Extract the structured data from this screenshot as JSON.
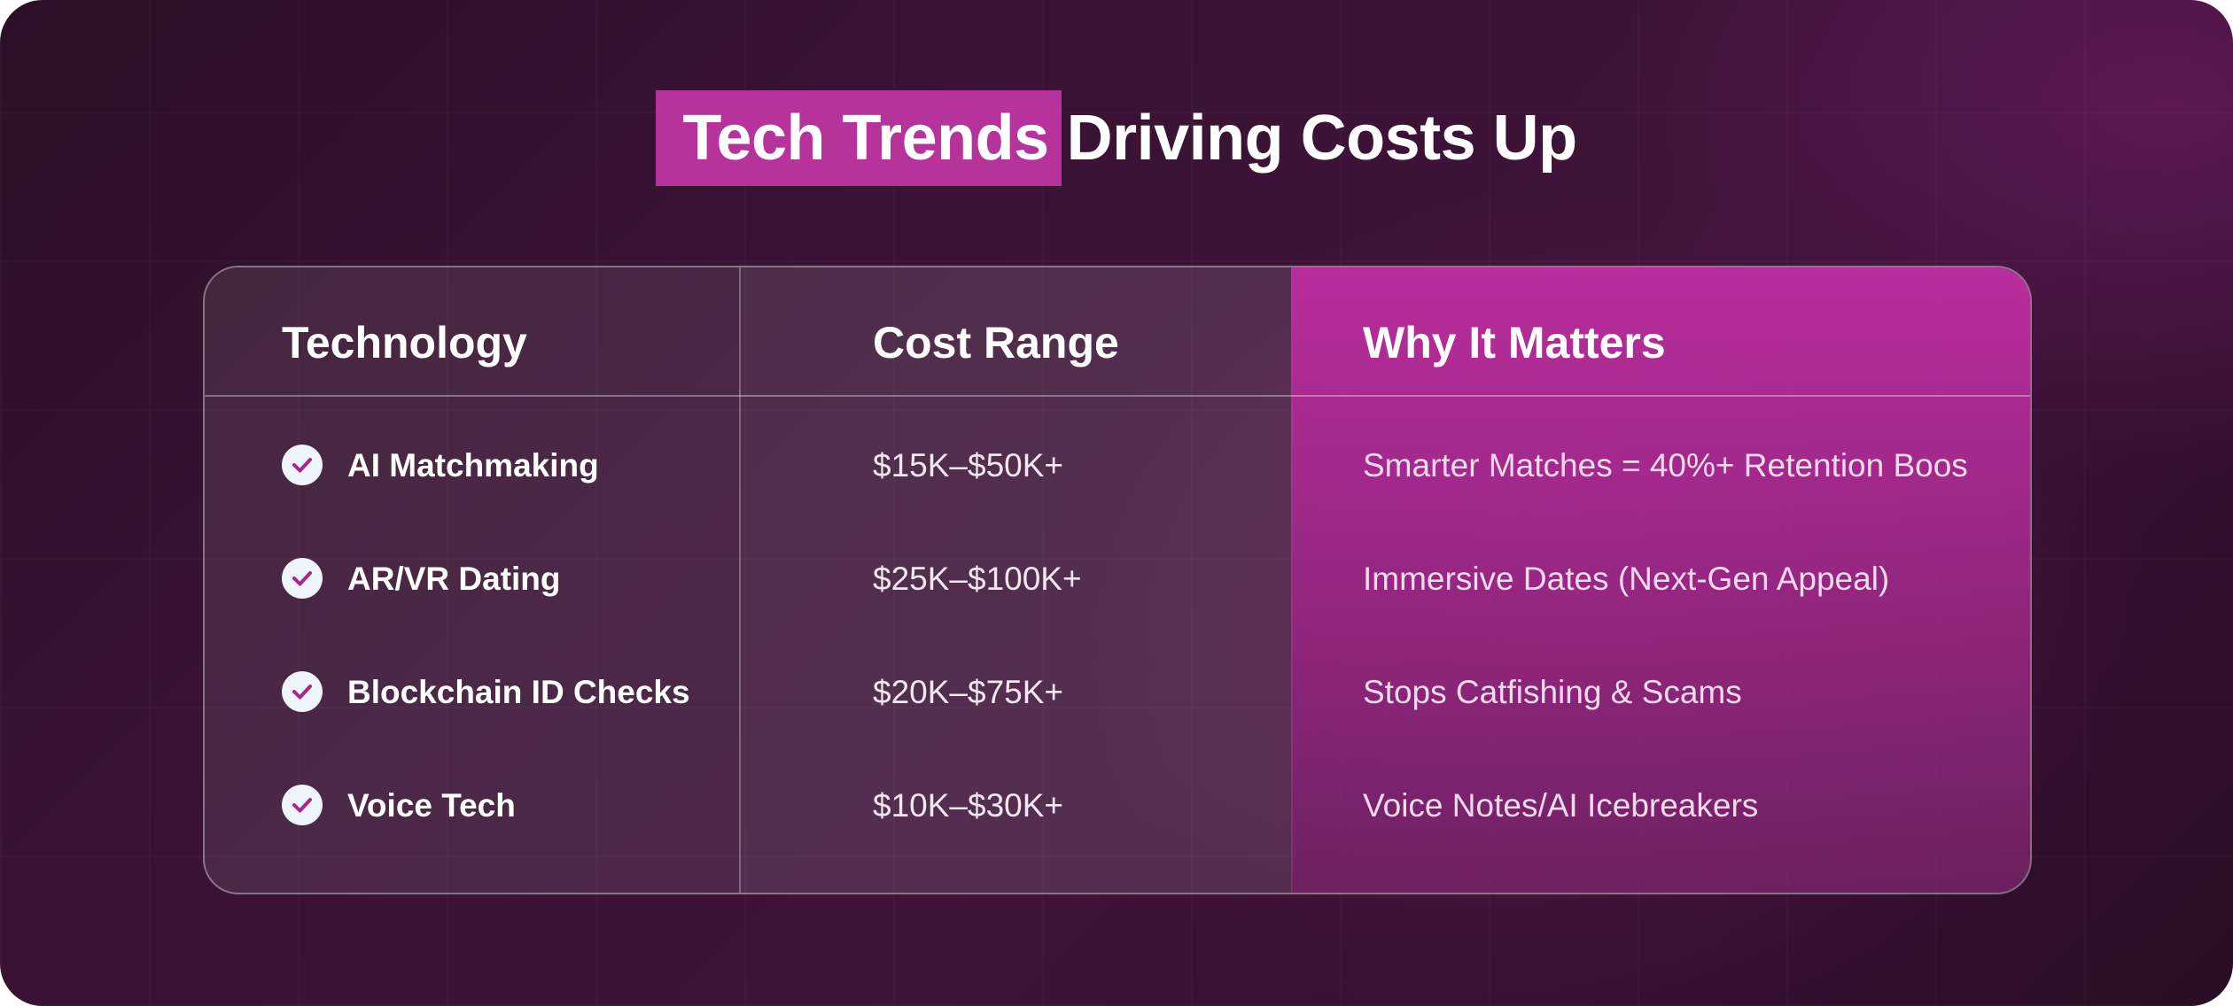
{
  "title": {
    "highlight": "Tech Trends",
    "rest": "Driving Costs Up"
  },
  "table": {
    "headers": [
      "Technology",
      "Cost Range",
      "Why It Matters"
    ],
    "rows": [
      {
        "technology": "AI Matchmaking",
        "cost": "$15K–$50K+",
        "why": "Smarter Matches = 40%+ Retention Boos",
        "icon": "check-circle-icon"
      },
      {
        "technology": "AR/VR Dating",
        "cost": "$25K–$100K+",
        "why": "Immersive Dates (Next-Gen Appeal)",
        "icon": "check-circle-icon"
      },
      {
        "technology": "Blockchain ID Checks",
        "cost": "$20K–$75K+",
        "why": "Stops Catfishing & Scams",
        "icon": "check-circle-icon"
      },
      {
        "technology": "Voice Tech",
        "cost": "$10K–$30K+",
        "why": "Voice Notes/AI Icebreakers",
        "icon": "check-circle-icon"
      }
    ]
  },
  "colors": {
    "accent": "#b5339b",
    "background": "#3a1334",
    "check": "#a8268e"
  }
}
